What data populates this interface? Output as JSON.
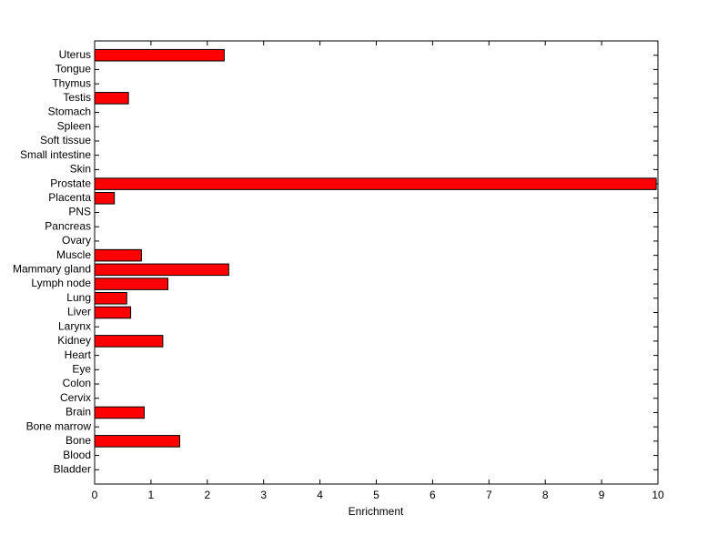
{
  "chart_data": {
    "type": "barh",
    "x_label": "Enrichment",
    "categories": [
      "Bladder",
      "Blood",
      "Bone",
      "Bone marrow",
      "Brain",
      "Cervix",
      "Colon",
      "Eye",
      "Heart",
      "Kidney",
      "Larynx",
      "Liver",
      "Lung",
      "Lymph node",
      "Mammary gland",
      "Muscle",
      "Ovary",
      "Pancreas",
      "PNS",
      "Placenta",
      "Prostate",
      "Skin",
      "Small intestine",
      "Soft tissue",
      "Spleen",
      "Stomach",
      "Testis",
      "Thymus",
      "Tongue",
      "Uterus"
    ],
    "values": [
      0,
      0,
      1.51,
      0,
      0.88,
      0,
      0,
      0,
      0,
      1.21,
      0,
      0.64,
      0.57,
      1.3,
      2.38,
      0.83,
      0,
      0,
      0,
      0.35,
      9.97,
      0,
      0,
      0,
      0,
      0,
      0.6,
      0,
      0,
      2.3
    ],
    "color": "#ff0000",
    "xlim": [
      0,
      10
    ],
    "xticks": [
      0,
      1,
      2,
      3,
      4,
      5,
      6,
      7,
      8,
      9,
      10
    ],
    "grid": false
  }
}
